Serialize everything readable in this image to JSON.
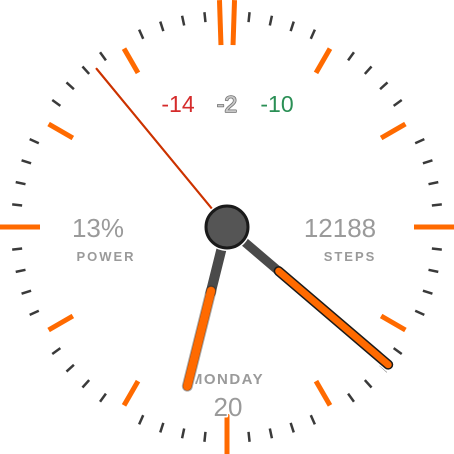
{
  "complications": {
    "temps": [
      {
        "value": "-14",
        "color": "#d52b2b"
      },
      {
        "value": "-2",
        "color": "#c8c8c8"
      },
      {
        "value": "-10",
        "color": "#2a8f55"
      }
    ],
    "power": {
      "value": "13%",
      "label": "POWER",
      "level": 0.13
    },
    "steps": {
      "value": "12188",
      "label": "STEPS"
    },
    "date": {
      "weekday": "MONDAY",
      "day": "20"
    }
  },
  "time": {
    "hour": 4,
    "minute": 26.5,
    "second": 52.5
  },
  "colors": {
    "accent": "#ff6a00",
    "hand_dark": "#4a4a4a",
    "second_hand": "#cc3300",
    "minor_tick": "#3a3a3a",
    "text_fill": "#9a9a9a",
    "outline": "#ffffff"
  },
  "icons": [
    "watch-face-dial",
    "hour-hand",
    "minute-hand",
    "second-hand",
    "center-pin"
  ]
}
